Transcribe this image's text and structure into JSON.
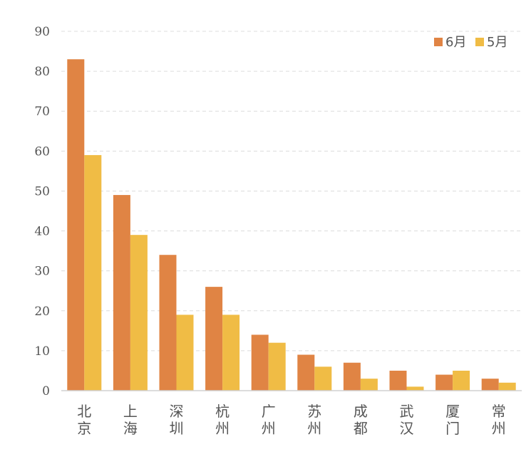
{
  "chart_data": {
    "type": "bar",
    "title": "",
    "xlabel": "",
    "ylabel": "",
    "categories": [
      "北京",
      "上海",
      "深圳",
      "杭州",
      "广州",
      "苏州",
      "成都",
      "武汉",
      "厦门",
      "常州"
    ],
    "series": [
      {
        "name": "6月",
        "color": "#E08444",
        "values": [
          83,
          49,
          34,
          26,
          14,
          9,
          7,
          5,
          4,
          3
        ]
      },
      {
        "name": "5月",
        "color": "#F0BC45",
        "values": [
          59,
          39,
          19,
          19,
          12,
          6,
          3,
          1,
          5,
          2
        ]
      }
    ],
    "ylim": [
      0,
      90
    ],
    "yticks": [
      0,
      10,
      20,
      30,
      40,
      50,
      60,
      70,
      80,
      90
    ],
    "grid": true,
    "legend_position": "top-right"
  }
}
